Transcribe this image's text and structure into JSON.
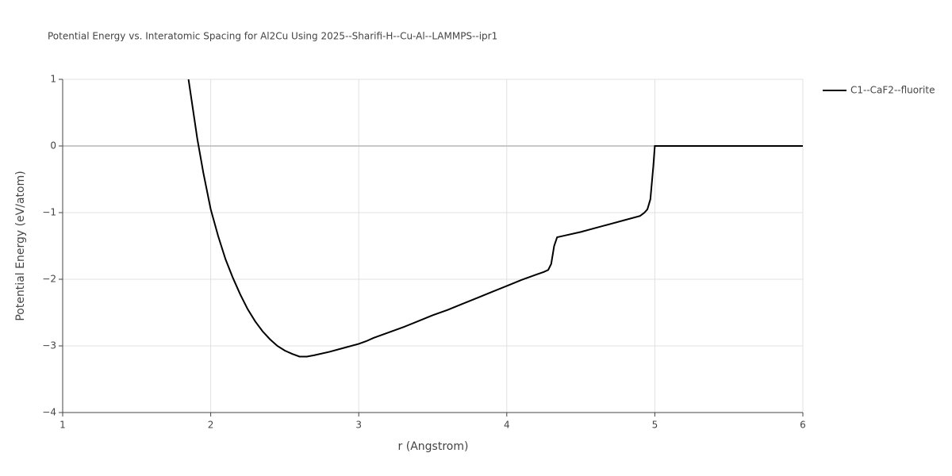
{
  "chart_data": {
    "type": "line",
    "title": "Potential Energy vs. Interatomic Spacing for Al2Cu Using 2025--Sharifi-H--Cu-Al--LAMMPS--ipr1",
    "x_label": "r (Angstrom)",
    "y_label": "Potential Energy (eV/atom)",
    "xlim": [
      1,
      6
    ],
    "xticks": [
      1,
      2,
      3,
      4,
      5,
      6
    ],
    "ylim": [
      -4,
      1
    ],
    "yticks": [
      {
        "value": -4,
        "label": "−4"
      },
      {
        "value": -3,
        "label": "−3"
      },
      {
        "value": -2,
        "label": "−2"
      },
      {
        "value": -1,
        "label": "−1"
      },
      0,
      1
    ],
    "grid": true,
    "legend": "right",
    "x": [
      1.85,
      1.88,
      1.91,
      1.95,
      2.0,
      2.05,
      2.1,
      2.15,
      2.2,
      2.25,
      2.3,
      2.35,
      2.4,
      2.45,
      2.5,
      2.55,
      2.6,
      2.65,
      2.7,
      2.8,
      2.9,
      3.0,
      3.05,
      3.1,
      3.2,
      3.3,
      3.4,
      3.5,
      3.6,
      3.7,
      3.8,
      3.9,
      4.0,
      4.1,
      4.2,
      4.25,
      4.28,
      4.3,
      4.32,
      4.34,
      4.4,
      4.5,
      4.6,
      4.7,
      4.8,
      4.9,
      4.93,
      4.95,
      4.97,
      4.99,
      5.0,
      5.5,
      6.0
    ],
    "series": [
      {
        "name": "C1--CaF2--fluorite",
        "color": "#000000",
        "values": [
          1.0,
          0.55,
          0.1,
          -0.4,
          -0.95,
          -1.35,
          -1.7,
          -1.98,
          -2.23,
          -2.45,
          -2.63,
          -2.78,
          -2.9,
          -3.0,
          -3.07,
          -3.12,
          -3.16,
          -3.16,
          -3.14,
          -3.09,
          -3.03,
          -2.97,
          -2.93,
          -2.88,
          -2.8,
          -2.72,
          -2.63,
          -2.54,
          -2.46,
          -2.37,
          -2.28,
          -2.19,
          -2.1,
          -2.01,
          -1.93,
          -1.89,
          -1.86,
          -1.77,
          -1.5,
          -1.37,
          -1.34,
          -1.29,
          -1.23,
          -1.17,
          -1.11,
          -1.05,
          -1.0,
          -0.95,
          -0.8,
          -0.3,
          0,
          0,
          0
        ]
      }
    ]
  }
}
